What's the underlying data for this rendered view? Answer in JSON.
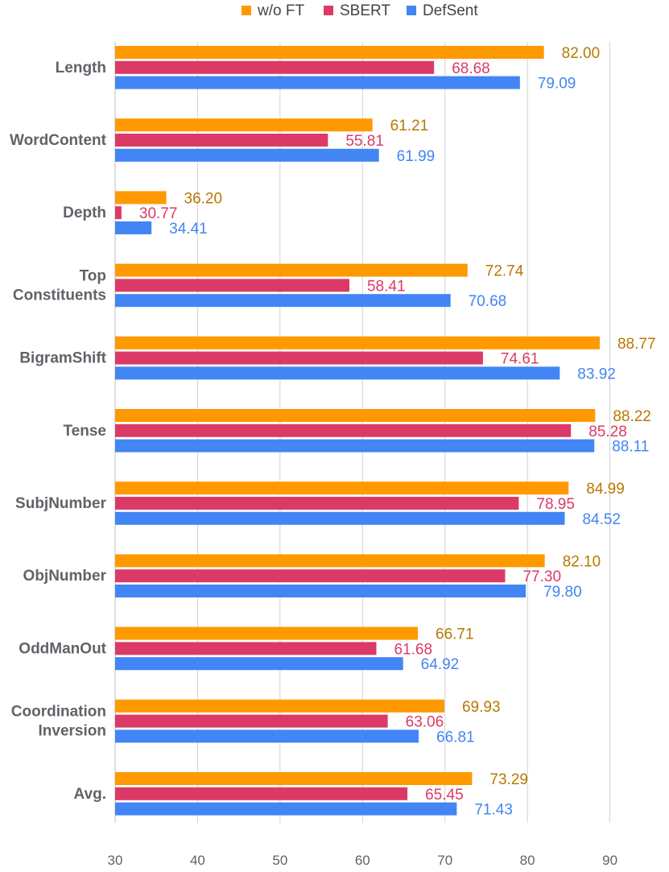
{
  "chart_data": {
    "type": "bar",
    "orientation": "horizontal",
    "title": "",
    "xlabel": "",
    "ylabel": "",
    "xlim": [
      30,
      95
    ],
    "ticks": [
      30,
      40,
      50,
      60,
      70,
      80,
      90
    ],
    "grid": true,
    "legend_position": "top",
    "categories": [
      [
        "Length"
      ],
      [
        "WordContent"
      ],
      [
        "Depth"
      ],
      [
        "Top",
        "Constituents"
      ],
      [
        "BigramShift"
      ],
      [
        "Tense"
      ],
      [
        "SubjNumber"
      ],
      [
        "ObjNumber"
      ],
      [
        "OddManOut"
      ],
      [
        "Coordination",
        "Inversion"
      ],
      [
        "Avg."
      ]
    ],
    "series": [
      {
        "name": "w/o FT",
        "color": "#ff9900",
        "label_color": "#b97800",
        "values": [
          82.0,
          61.21,
          36.2,
          72.74,
          88.77,
          88.22,
          84.99,
          82.1,
          66.71,
          69.93,
          73.29
        ],
        "labels": [
          "82.00",
          "61.21",
          "36.20",
          "72.74",
          "88.77",
          "88.22",
          "84.99",
          "82.10",
          "66.71",
          "69.93",
          "73.29"
        ]
      },
      {
        "name": "SBERT",
        "color": "#dc3a66",
        "label_color": "#dc3a66",
        "values": [
          68.68,
          55.81,
          30.77,
          58.41,
          74.61,
          85.28,
          78.95,
          77.3,
          61.68,
          63.06,
          65.45
        ],
        "labels": [
          "68.68",
          "55.81",
          "30.77",
          "58.41",
          "74.61",
          "85.28",
          "78.95",
          "77.30",
          "61.68",
          "63.06",
          "65.45"
        ]
      },
      {
        "name": "DefSent",
        "color": "#4285f4",
        "label_color": "#4285f4",
        "values": [
          79.09,
          61.99,
          34.41,
          70.68,
          83.92,
          88.11,
          84.52,
          79.8,
          64.92,
          66.81,
          71.43
        ],
        "labels": [
          "79.09",
          "61.99",
          "34.41",
          "70.68",
          "83.92",
          "88.11",
          "84.52",
          "79.80",
          "64.92",
          "66.81",
          "71.43"
        ]
      }
    ]
  }
}
